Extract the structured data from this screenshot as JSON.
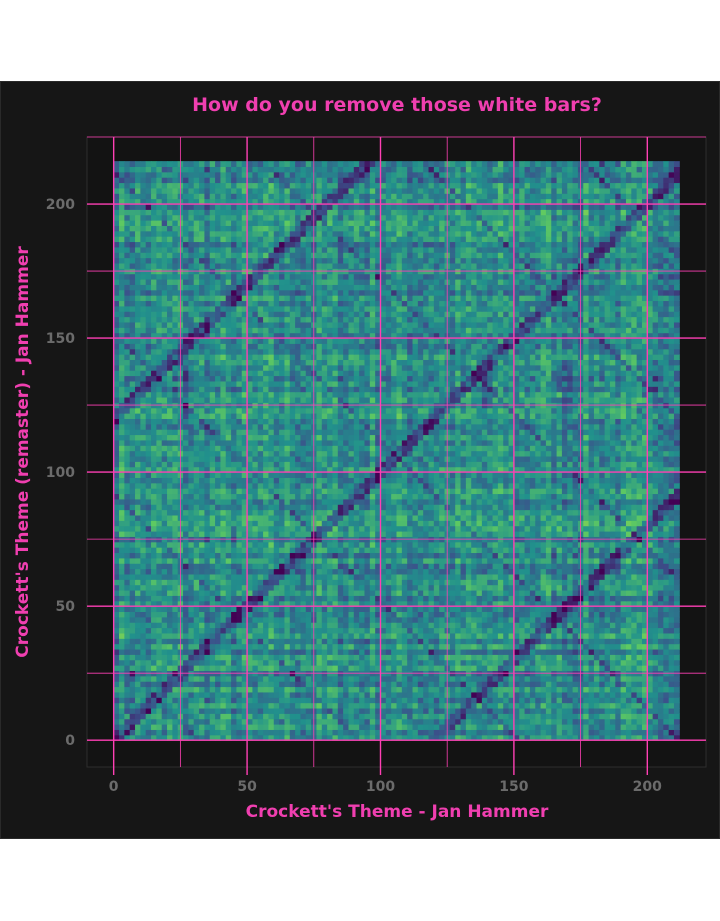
{
  "chart_data": {
    "type": "heatmap",
    "title": "How do you remove those white bars?",
    "xlabel": "Crockett's Theme - Jan Hammer",
    "ylabel": "Crockett's Theme (remaster) - Jan Hammer",
    "xlim": [
      -10,
      222
    ],
    "ylim": [
      -10,
      225
    ],
    "x_range": [
      0,
      212
    ],
    "y_range": [
      0,
      216
    ],
    "x_ticks": [
      0,
      50,
      100,
      150,
      200
    ],
    "x_tick_labels": [
      "0",
      "50",
      "100",
      "150",
      "200"
    ],
    "y_ticks": [
      0,
      50,
      100,
      150,
      200
    ],
    "y_tick_labels": [
      "0",
      "50",
      "100",
      "150",
      "200"
    ],
    "x_minor_ticks": [
      25,
      75,
      125,
      175
    ],
    "y_minor_ticks": [
      25,
      75,
      125,
      175,
      225
    ],
    "colormap": "viridis",
    "grid": true,
    "grid_color": "#ff3fb4",
    "background_color": "#161616",
    "title_color": "#f03fb0",
    "tick_label_color": "#6b6b6b"
  }
}
